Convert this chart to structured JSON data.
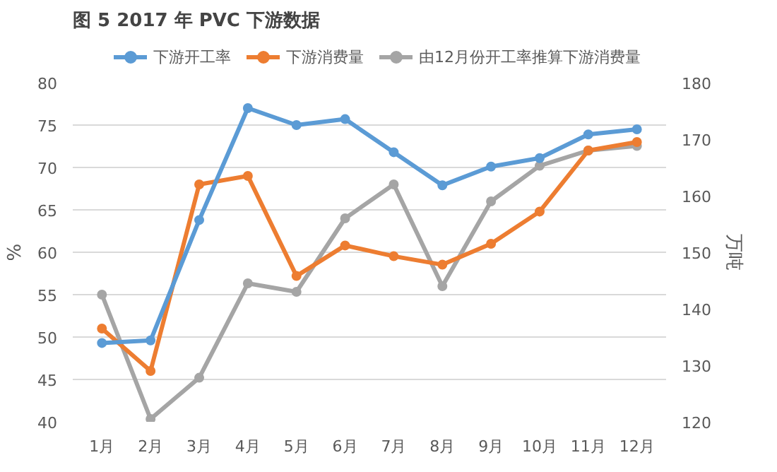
{
  "chart_data": {
    "type": "line",
    "title": "图 5    2017 年 PVC 下游数据",
    "ylabel": "%",
    "y2label": "万吨",
    "categories": [
      "1月",
      "2月",
      "3月",
      "4月",
      "5月",
      "6月",
      "7月",
      "8月",
      "9月",
      "10月",
      "11月",
      "12月"
    ],
    "series": [
      {
        "name": "下游开工率",
        "color": "#5b9bd5",
        "values": [
          49.3,
          49.6,
          63.8,
          77,
          75,
          75.7,
          71.8,
          67.9,
          70.1,
          71.1,
          73.9,
          74.5
        ]
      },
      {
        "name": "下游消费量",
        "color": "#ed7d31",
        "axis": "y2",
        "values": [
          136.5,
          129,
          162,
          163.5,
          145.8,
          151.2,
          149.3,
          147.8,
          151.5,
          157.2,
          168,
          169.5
        ]
      },
      {
        "name": "由12月份开工率推算下游消费量",
        "color": "#a5a5a5",
        "axis": "y2",
        "values": [
          142.5,
          120.5,
          127.8,
          144.5,
          143,
          156,
          162,
          144,
          159,
          165.3,
          168,
          168.8
        ]
      }
    ],
    "ylim": [
      40,
      80
    ],
    "yticks": [
      40,
      45,
      50,
      55,
      60,
      65,
      70,
      75,
      80
    ],
    "y2lim": [
      120,
      180
    ],
    "y2ticks": [
      120,
      130,
      140,
      150,
      160,
      170,
      180
    ],
    "grid": "y",
    "legend": "top",
    "marker": "circle",
    "line_style": "solid"
  }
}
